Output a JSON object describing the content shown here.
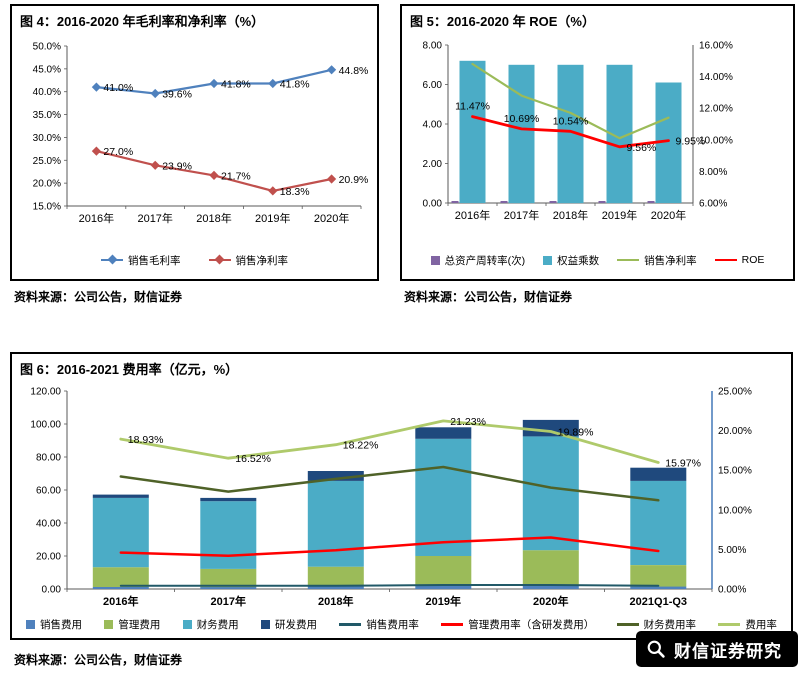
{
  "figures": [
    {
      "title": "图 4：2016-2020 年毛利率和净利率（%）",
      "source": "资料来源：公司公告，财信证券"
    },
    {
      "title": "图 5：2016-2020 年 ROE（%）",
      "source": "资料来源：公司公告，财信证券"
    },
    {
      "title": "图 6：2016-2021 费用率（亿元，%）",
      "source": "资料来源：公司公告，财信证券"
    }
  ],
  "watermark": {
    "text": "财信证券研究",
    "icon": "magnifier-icon",
    "bg": "#000000",
    "fg": "#FFFFFF"
  },
  "chart_data": [
    {
      "id": "fig4",
      "type": "line",
      "title": "2016-2020 年毛利率和净利率（%）",
      "categories": [
        "2016年",
        "2017年",
        "2018年",
        "2019年",
        "2020年"
      ],
      "left_axis": {
        "min": 15,
        "max": 50,
        "tick_values": [
          15,
          20,
          25,
          30,
          35,
          40,
          45,
          50
        ],
        "tick_labels": [
          "15.0%",
          "20.0%",
          "25.0%",
          "30.0%",
          "35.0%",
          "40.0%",
          "45.0%",
          "50.0%"
        ]
      },
      "line_series": [
        {
          "name": "销售毛利率",
          "axis": "left",
          "color": "#4F81BD",
          "marker": "diamond",
          "values": [
            41.0,
            39.6,
            41.8,
            41.8,
            44.8
          ],
          "labels": [
            "41.0%",
            "39.6%",
            "41.8%",
            "41.8%",
            "44.8%"
          ],
          "label_sides": [
            "right",
            "right",
            "right",
            "right",
            "right"
          ]
        },
        {
          "name": "销售净利率",
          "axis": "left",
          "color": "#C0504D",
          "marker": "diamond",
          "values": [
            27.0,
            23.9,
            21.7,
            18.3,
            20.9
          ],
          "labels": [
            "27.0%",
            "23.9%",
            "21.7%",
            "18.3%",
            "20.9%"
          ],
          "label_sides": [
            "right",
            "right",
            "right",
            "right",
            "right"
          ]
        }
      ],
      "legend_position": "bottom",
      "grid": false
    },
    {
      "id": "fig5",
      "type": "combo",
      "title": "2016-2020 年 ROE（%）",
      "categories": [
        "2016年",
        "2017年",
        "2018年",
        "2019年",
        "2020年"
      ],
      "left_axis": {
        "min": 0,
        "max": 8,
        "tick_values": [
          0,
          2,
          4,
          6,
          8
        ],
        "tick_labels": [
          "0.00",
          "2.00",
          "4.00",
          "6.00",
          "8.00"
        ]
      },
      "right_axis": {
        "min": 6,
        "max": 16,
        "tick_values": [
          6,
          8,
          10,
          12,
          14,
          16
        ],
        "tick_labels": [
          "6.00%",
          "8.00%",
          "10.00%",
          "12.00%",
          "14.00%",
          "16.00%"
        ]
      },
      "bar_mode": "grouped",
      "bar_series": [
        {
          "name": "总资产周转率(次)",
          "axis": "left",
          "color": "#8064A2",
          "values": [
            0.1,
            0.1,
            0.1,
            0.1,
            0.1
          ]
        },
        {
          "name": "权益乘数",
          "axis": "left",
          "color": "#4BACC6",
          "values": [
            7.2,
            7.0,
            7.0,
            7.0,
            6.1
          ]
        }
      ],
      "line_series": [
        {
          "name": "销售净利率",
          "axis": "right",
          "color": "#9BBB59",
          "values": [
            14.8,
            12.8,
            11.7,
            10.1,
            11.4
          ]
        },
        {
          "name": "ROE",
          "axis": "right",
          "color": "#FF0000",
          "values": [
            11.47,
            10.69,
            10.54,
            9.56,
            9.95
          ],
          "labels": [
            "11.47%",
            "10.69%",
            "10.54%",
            "9.56%",
            "9.95%"
          ],
          "label_sides": [
            "above",
            "above",
            "above",
            "right",
            "right"
          ]
        }
      ],
      "legend_position": "bottom",
      "grid": false
    },
    {
      "id": "fig6",
      "type": "combo",
      "title": "2016-2021 费用率（亿元，%）",
      "categories": [
        "2016年",
        "2017年",
        "2018年",
        "2019年",
        "2020年",
        "2021Q1-Q3"
      ],
      "left_axis": {
        "min": 0,
        "max": 120,
        "tick_values": [
          0,
          20,
          40,
          60,
          80,
          100,
          120
        ],
        "tick_labels": [
          "0.00",
          "20.00",
          "40.00",
          "60.00",
          "80.00",
          "100.00",
          "120.00"
        ]
      },
      "right_axis": {
        "min": 0,
        "max": 25,
        "tick_values": [
          0,
          5,
          10,
          15,
          20,
          25
        ],
        "tick_labels": [
          "0.00%",
          "5.00%",
          "10.00%",
          "15.00%",
          "20.00%",
          "25.00%"
        ],
        "color": "#4F81BD"
      },
      "bar_mode": "stacked",
      "bar_series": [
        {
          "name": "销售费用",
          "axis": "left",
          "color": "#4F81BD",
          "values": [
            1.2,
            1.2,
            1.5,
            2.0,
            2.5,
            1.5
          ]
        },
        {
          "name": "管理费用",
          "axis": "left",
          "color": "#9BBB59",
          "values": [
            12.0,
            11.0,
            12.0,
            18.0,
            21.0,
            13.0
          ]
        },
        {
          "name": "财务费用",
          "axis": "left",
          "color": "#4BACC6",
          "values": [
            42.0,
            41.0,
            52.0,
            71.0,
            69.0,
            51.0
          ]
        },
        {
          "name": "研发费用",
          "axis": "left",
          "color": "#1F497D",
          "values": [
            2.0,
            2.0,
            6.0,
            7.0,
            10.0,
            8.0
          ]
        }
      ],
      "line_series": [
        {
          "name": "销售费用率",
          "axis": "right",
          "color": "#215968",
          "values": [
            0.4,
            0.4,
            0.4,
            0.5,
            0.5,
            0.4
          ]
        },
        {
          "name": "管理费用率（含研发费用）",
          "axis": "right",
          "color": "#FF0000",
          "values": [
            4.6,
            4.2,
            4.9,
            5.9,
            6.5,
            4.8
          ]
        },
        {
          "name": "财务费用率",
          "axis": "right",
          "color": "#4F6228",
          "values": [
            14.2,
            12.3,
            13.9,
            15.4,
            12.8,
            11.2
          ]
        },
        {
          "name": "费用率",
          "axis": "right",
          "color": "#AFCA6B",
          "values": [
            18.93,
            16.52,
            18.22,
            21.23,
            19.89,
            15.97
          ],
          "labels": [
            "18.93%",
            "16.52%",
            "18.22%",
            "21.23%",
            "19.89%",
            "15.97%"
          ],
          "label_sides": [
            "right",
            "right",
            "right",
            "right",
            "right",
            "right"
          ]
        }
      ],
      "legend_position": "bottom",
      "grid": false
    }
  ]
}
